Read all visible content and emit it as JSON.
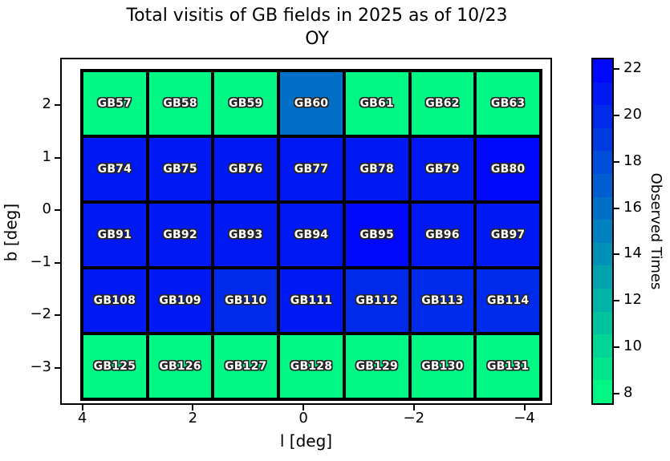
{
  "title": {
    "line1": "Total visitis of GB fields in 2025 as of 10/23",
    "line2": "OY"
  },
  "chart_data": {
    "type": "heatmap",
    "title": "Total visitis of GB fields in 2025 as of 10/23 OY",
    "xlabel": "l [deg]",
    "ylabel": "b [deg]",
    "colorbar_label": "Observed Times",
    "colormap": "winter_r",
    "vmin": 7.5,
    "vmax": 22.5,
    "xlim": [
      4.4,
      -4.5
    ],
    "ylim": [
      -3.7,
      2.9
    ],
    "x_tick_labels": [
      "4",
      "2",
      "0",
      "−2",
      "−4"
    ],
    "y_tick_labels": [
      "2",
      "1",
      "0",
      "−1",
      "−2",
      "−3"
    ],
    "colorbar_tick_labels": [
      "8",
      "10",
      "12",
      "14",
      "16",
      "18",
      "20",
      "22"
    ],
    "l_centers": [
      3.6,
      2.4,
      1.2,
      0.0,
      -1.2,
      -2.4,
      -3.6
    ],
    "b_centers": [
      2.0,
      0.8,
      -0.4,
      -1.7,
      -2.9
    ],
    "rows": [
      {
        "fields": [
          "GB57",
          "GB58",
          "GB59",
          "GB60",
          "GB61",
          "GB62",
          "GB63"
        ],
        "values": [
          8,
          8,
          8,
          16,
          8,
          8,
          8
        ]
      },
      {
        "fields": [
          "GB74",
          "GB75",
          "GB76",
          "GB77",
          "GB78",
          "GB79",
          "GB80"
        ],
        "values": [
          21,
          21,
          21,
          21,
          21,
          21,
          22
        ]
      },
      {
        "fields": [
          "GB91",
          "GB92",
          "GB93",
          "GB94",
          "GB95",
          "GB96",
          "GB97"
        ],
        "values": [
          21,
          21,
          21,
          21,
          22,
          21,
          21
        ]
      },
      {
        "fields": [
          "GB108",
          "GB109",
          "GB110",
          "GB111",
          "GB112",
          "GB113",
          "GB114"
        ],
        "values": [
          21,
          21,
          20,
          21,
          20,
          20,
          20
        ]
      },
      {
        "fields": [
          "GB125",
          "GB126",
          "GB127",
          "GB128",
          "GB129",
          "GB130",
          "GB131"
        ],
        "values": [
          8,
          8,
          8,
          8,
          8,
          8,
          8
        ]
      }
    ]
  }
}
